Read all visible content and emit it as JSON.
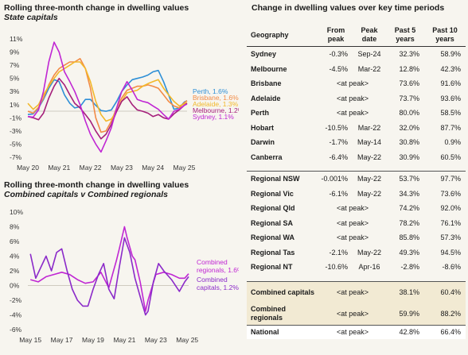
{
  "chart1": {
    "title": "Rolling three-month change in dwelling values",
    "subtitle": "State capitals",
    "chart_data": {
      "type": "line",
      "title": "Rolling three-month change in dwelling values",
      "subtitle": "State capitals",
      "xlabel": "",
      "ylabel": "",
      "ylim": [
        -7,
        11
      ],
      "y_ticks": [
        "11%",
        "9%",
        "7%",
        "5%",
        "3%",
        "1%",
        "-1%",
        "-3%",
        "-5%",
        "-7%"
      ],
      "x_ticks": [
        "May 20",
        "May 21",
        "May 22",
        "May 23",
        "May 24",
        "May 25"
      ],
      "x_range": [
        2020.33,
        2025.42
      ],
      "grid": false,
      "legend": "right-end",
      "series": [
        {
          "name": "Perth",
          "label": "Perth, 1.6%",
          "color": "#2e8fd6",
          "x": [
            2020.33,
            2020.5,
            2020.67,
            2020.83,
            2021.0,
            2021.17,
            2021.33,
            2021.5,
            2021.67,
            2021.83,
            2022.0,
            2022.17,
            2022.33,
            2022.5,
            2022.67,
            2022.83,
            2023.0,
            2023.17,
            2023.33,
            2023.5,
            2023.67,
            2023.83,
            2024.0,
            2024.17,
            2024.33,
            2024.5,
            2024.67,
            2024.83,
            2025.0,
            2025.17,
            2025.33,
            2025.42
          ],
          "y": [
            -0.5,
            -0.4,
            0.5,
            1.8,
            3.5,
            4.8,
            4.5,
            2.5,
            1.2,
            0.5,
            0.7,
            1.8,
            1.8,
            0.9,
            0.1,
            0.0,
            0.2,
            1.5,
            3.0,
            4.0,
            4.8,
            5.0,
            5.2,
            5.5,
            6.0,
            6.2,
            4.5,
            2.5,
            0.3,
            0.5,
            1.4,
            1.6
          ]
        },
        {
          "name": "Brisbane",
          "label": "Brisbane, 1.6%",
          "color": "#f28b46",
          "x": [
            2020.33,
            2020.5,
            2020.67,
            2020.83,
            2021.0,
            2021.17,
            2021.33,
            2021.5,
            2021.67,
            2021.83,
            2022.0,
            2022.17,
            2022.33,
            2022.5,
            2022.67,
            2022.83,
            2023.0,
            2023.17,
            2023.33,
            2023.5,
            2023.67,
            2023.83,
            2024.0,
            2024.17,
            2024.33,
            2024.5,
            2024.67,
            2024.83,
            2025.0,
            2025.17,
            2025.33,
            2025.42
          ],
          "y": [
            0.0,
            -0.3,
            0.6,
            2.0,
            4.0,
            5.5,
            6.5,
            7.0,
            7.5,
            7.5,
            8.0,
            6.5,
            3.5,
            -1.0,
            -3.2,
            -3.0,
            -1.5,
            0.5,
            2.0,
            3.2,
            3.5,
            3.8,
            3.8,
            4.0,
            3.8,
            3.5,
            2.5,
            1.5,
            0.8,
            0.5,
            1.3,
            1.6
          ]
        },
        {
          "name": "Adelaide",
          "label": "Adelaide, 1.3%",
          "color": "#f2b82a",
          "x": [
            2020.33,
            2020.5,
            2020.67,
            2020.83,
            2021.0,
            2021.17,
            2021.33,
            2021.5,
            2021.67,
            2021.83,
            2022.0,
            2022.17,
            2022.33,
            2022.5,
            2022.67,
            2022.83,
            2023.0,
            2023.17,
            2023.33,
            2023.5,
            2023.67,
            2023.83,
            2024.0,
            2024.17,
            2024.33,
            2024.5,
            2024.67,
            2024.83,
            2025.0,
            2025.17,
            2025.33,
            2025.42
          ],
          "y": [
            1.2,
            0.3,
            1.0,
            2.5,
            3.8,
            5.0,
            6.0,
            6.5,
            7.0,
            7.5,
            7.5,
            6.5,
            4.5,
            1.5,
            -0.5,
            -1.5,
            -1.2,
            0.0,
            1.5,
            2.8,
            3.0,
            3.2,
            3.8,
            4.2,
            4.5,
            4.8,
            3.5,
            2.5,
            1.5,
            0.8,
            1.1,
            1.3
          ]
        },
        {
          "name": "Melbourne",
          "label": "Melbourne, 1.2%",
          "color": "#a51f7b",
          "x": [
            2020.33,
            2020.5,
            2020.67,
            2020.83,
            2021.0,
            2021.17,
            2021.33,
            2021.5,
            2021.67,
            2021.83,
            2022.0,
            2022.17,
            2022.33,
            2022.5,
            2022.67,
            2022.83,
            2023.0,
            2023.17,
            2023.33,
            2023.5,
            2023.67,
            2023.83,
            2024.0,
            2024.17,
            2024.33,
            2024.5,
            2024.67,
            2024.83,
            2025.0,
            2025.17,
            2025.33,
            2025.42
          ],
          "y": [
            -0.8,
            -1.0,
            -1.3,
            -0.3,
            2.0,
            3.8,
            5.0,
            4.0,
            2.5,
            1.2,
            0.5,
            -0.5,
            -1.5,
            -3.0,
            -4.2,
            -3.5,
            -2.0,
            0.0,
            1.5,
            2.2,
            1.0,
            0.2,
            0.0,
            -0.3,
            -0.8,
            -0.5,
            -1.0,
            -1.2,
            -0.4,
            0.2,
            0.9,
            1.2
          ]
        },
        {
          "name": "Sydney",
          "label": "Sydney, 1.1%",
          "color": "#c026d3",
          "x": [
            2020.33,
            2020.5,
            2020.67,
            2020.83,
            2021.0,
            2021.17,
            2021.33,
            2021.5,
            2021.67,
            2021.83,
            2022.0,
            2022.17,
            2022.33,
            2022.5,
            2022.67,
            2022.83,
            2023.0,
            2023.17,
            2023.33,
            2023.5,
            2023.67,
            2023.83,
            2024.0,
            2024.17,
            2024.33,
            2024.5,
            2024.67,
            2024.83,
            2025.0,
            2025.17,
            2025.33,
            2025.42
          ],
          "y": [
            -0.8,
            -0.9,
            0.2,
            3.0,
            7.5,
            10.5,
            9.0,
            6.0,
            4.5,
            3.0,
            1.0,
            -1.5,
            -3.5,
            -5.0,
            -6.2,
            -4.5,
            -2.5,
            0.5,
            3.0,
            4.5,
            3.2,
            1.8,
            1.5,
            1.3,
            0.8,
            0.3,
            -0.5,
            -1.2,
            0.0,
            0.3,
            0.9,
            1.1
          ]
        }
      ]
    }
  },
  "chart2": {
    "title": "Rolling three-month change in dwelling values",
    "subtitle": "Combined capitals v Combined regionals",
    "chart_data": {
      "type": "line",
      "title": "Rolling three-month change in dwelling values",
      "subtitle": "Combined capitals v Combined regionals",
      "xlabel": "",
      "ylabel": "",
      "ylim": [
        -6,
        10
      ],
      "y_ticks": [
        "10%",
        "8%",
        "6%",
        "4%",
        "2%",
        "0%",
        "-2%",
        "-4%",
        "-6%"
      ],
      "x_ticks": [
        "May 15",
        "May 17",
        "May 19",
        "May 21",
        "May 23",
        "May 25"
      ],
      "x_range": [
        2015.17,
        2025.42
      ],
      "grid": false,
      "legend": "right-end",
      "series": [
        {
          "name": "Combined regionals",
          "label": "Combined regionals, 1.6%",
          "color": "#c026d3",
          "x": [
            2015.33,
            2015.83,
            2016.33,
            2016.83,
            2017.33,
            2017.83,
            2018.33,
            2018.83,
            2019.33,
            2019.83,
            2020.33,
            2020.83,
            2021.0,
            2021.33,
            2021.5,
            2021.83,
            2022.0,
            2022.33,
            2022.67,
            2022.83,
            2023.33,
            2023.83,
            2024.33,
            2024.83,
            2025.17,
            2025.42
          ],
          "y": [
            0.8,
            0.5,
            1.2,
            1.5,
            1.8,
            1.5,
            0.8,
            0.3,
            0.5,
            1.8,
            -0.3,
            3.5,
            5.0,
            8.0,
            6.5,
            4.0,
            3.5,
            0.5,
            -3.5,
            -2.0,
            1.5,
            1.8,
            1.5,
            1.0,
            1.0,
            1.6
          ]
        },
        {
          "name": "Combined capitals",
          "label": "Combined capitals, 1.2%",
          "color": "#8b2ac9",
          "x": [
            2015.33,
            2015.67,
            2016.0,
            2016.33,
            2016.67,
            2017.0,
            2017.33,
            2017.67,
            2018.0,
            2018.33,
            2018.67,
            2019.0,
            2019.33,
            2019.67,
            2020.0,
            2020.33,
            2020.67,
            2021.0,
            2021.33,
            2021.67,
            2022.0,
            2022.33,
            2022.67,
            2022.83,
            2023.17,
            2023.5,
            2023.83,
            2024.33,
            2024.83,
            2025.17,
            2025.42
          ],
          "y": [
            4.3,
            1.0,
            2.5,
            4.0,
            2.0,
            4.5,
            5.0,
            2.0,
            -0.5,
            -2.0,
            -2.8,
            -2.8,
            -0.5,
            1.5,
            3.0,
            -0.5,
            -1.8,
            2.5,
            6.5,
            4.5,
            1.0,
            -1.5,
            -4.0,
            -3.5,
            0.5,
            3.0,
            2.0,
            0.8,
            -0.8,
            0.5,
            1.2
          ]
        }
      ]
    }
  },
  "table": {
    "title": "Change in dwelling values over key time periods",
    "headers": [
      "Geography",
      "From peak",
      "Peak date",
      "Past 5 years",
      "Past 10 years"
    ],
    "groups": [
      [
        {
          "geo": "Sydney",
          "from_peak": "-0.3%",
          "peak_date": "Sep-24",
          "past5": "32.3%",
          "past10": "58.9%"
        },
        {
          "geo": "Melbourne",
          "from_peak": "-4.5%",
          "peak_date": "Mar-22",
          "past5": "12.8%",
          "past10": "42.3%"
        },
        {
          "geo": "Brisbane",
          "at_peak": "<at peak>",
          "past5": "73.6%",
          "past10": "91.6%"
        },
        {
          "geo": "Adelaide",
          "at_peak": "<at peak>",
          "past5": "73.7%",
          "past10": "93.6%"
        },
        {
          "geo": "Perth",
          "at_peak": "<at peak>",
          "past5": "80.0%",
          "past10": "58.5%"
        },
        {
          "geo": "Hobart",
          "from_peak": "-10.5%",
          "peak_date": "Mar-22",
          "past5": "32.0%",
          "past10": "87.7%"
        },
        {
          "geo": "Darwin",
          "from_peak": "-1.7%",
          "peak_date": "May-14",
          "past5": "30.8%",
          "past10": "0.9%"
        },
        {
          "geo": "Canberra",
          "from_peak": "-6.4%",
          "peak_date": "May-22",
          "past5": "30.9%",
          "past10": "60.5%"
        }
      ],
      [
        {
          "geo": "Regional NSW",
          "from_peak": "-0.001%",
          "peak_date": "May-22",
          "past5": "53.7%",
          "past10": "97.7%"
        },
        {
          "geo": "Regional Vic",
          "from_peak": "-6.1%",
          "peak_date": "May-22",
          "past5": "34.3%",
          "past10": "73.6%"
        },
        {
          "geo": "Regional Qld",
          "at_peak": "<at peak>",
          "past5": "74.2%",
          "past10": "92.0%"
        },
        {
          "geo": "Regional SA",
          "at_peak": "<at peak>",
          "past5": "78.2%",
          "past10": "76.1%"
        },
        {
          "geo": "Regional WA",
          "at_peak": "<at peak>",
          "past5": "85.8%",
          "past10": "57.3%"
        },
        {
          "geo": "Regional Tas",
          "from_peak": "-2.1%",
          "peak_date": "May-22",
          "past5": "49.3%",
          "past10": "94.5%"
        },
        {
          "geo": "Regional NT",
          "from_peak": "-10.6%",
          "peak_date": "Apr-16",
          "past5": "-2.8%",
          "past10": "-8.6%"
        }
      ],
      [
        {
          "geo": "Combined capitals",
          "at_peak": "<at peak>",
          "past5": "38.1%",
          "past10": "60.4%",
          "shade": true
        },
        {
          "geo": "Combined regionals",
          "at_peak": "<at peak>",
          "past5": "59.9%",
          "past10": "88.2%",
          "shade": true
        }
      ],
      [
        {
          "geo": "National",
          "at_peak": "<at peak>",
          "past5": "42.8%",
          "past10": "66.4%",
          "last": true
        }
      ]
    ]
  }
}
